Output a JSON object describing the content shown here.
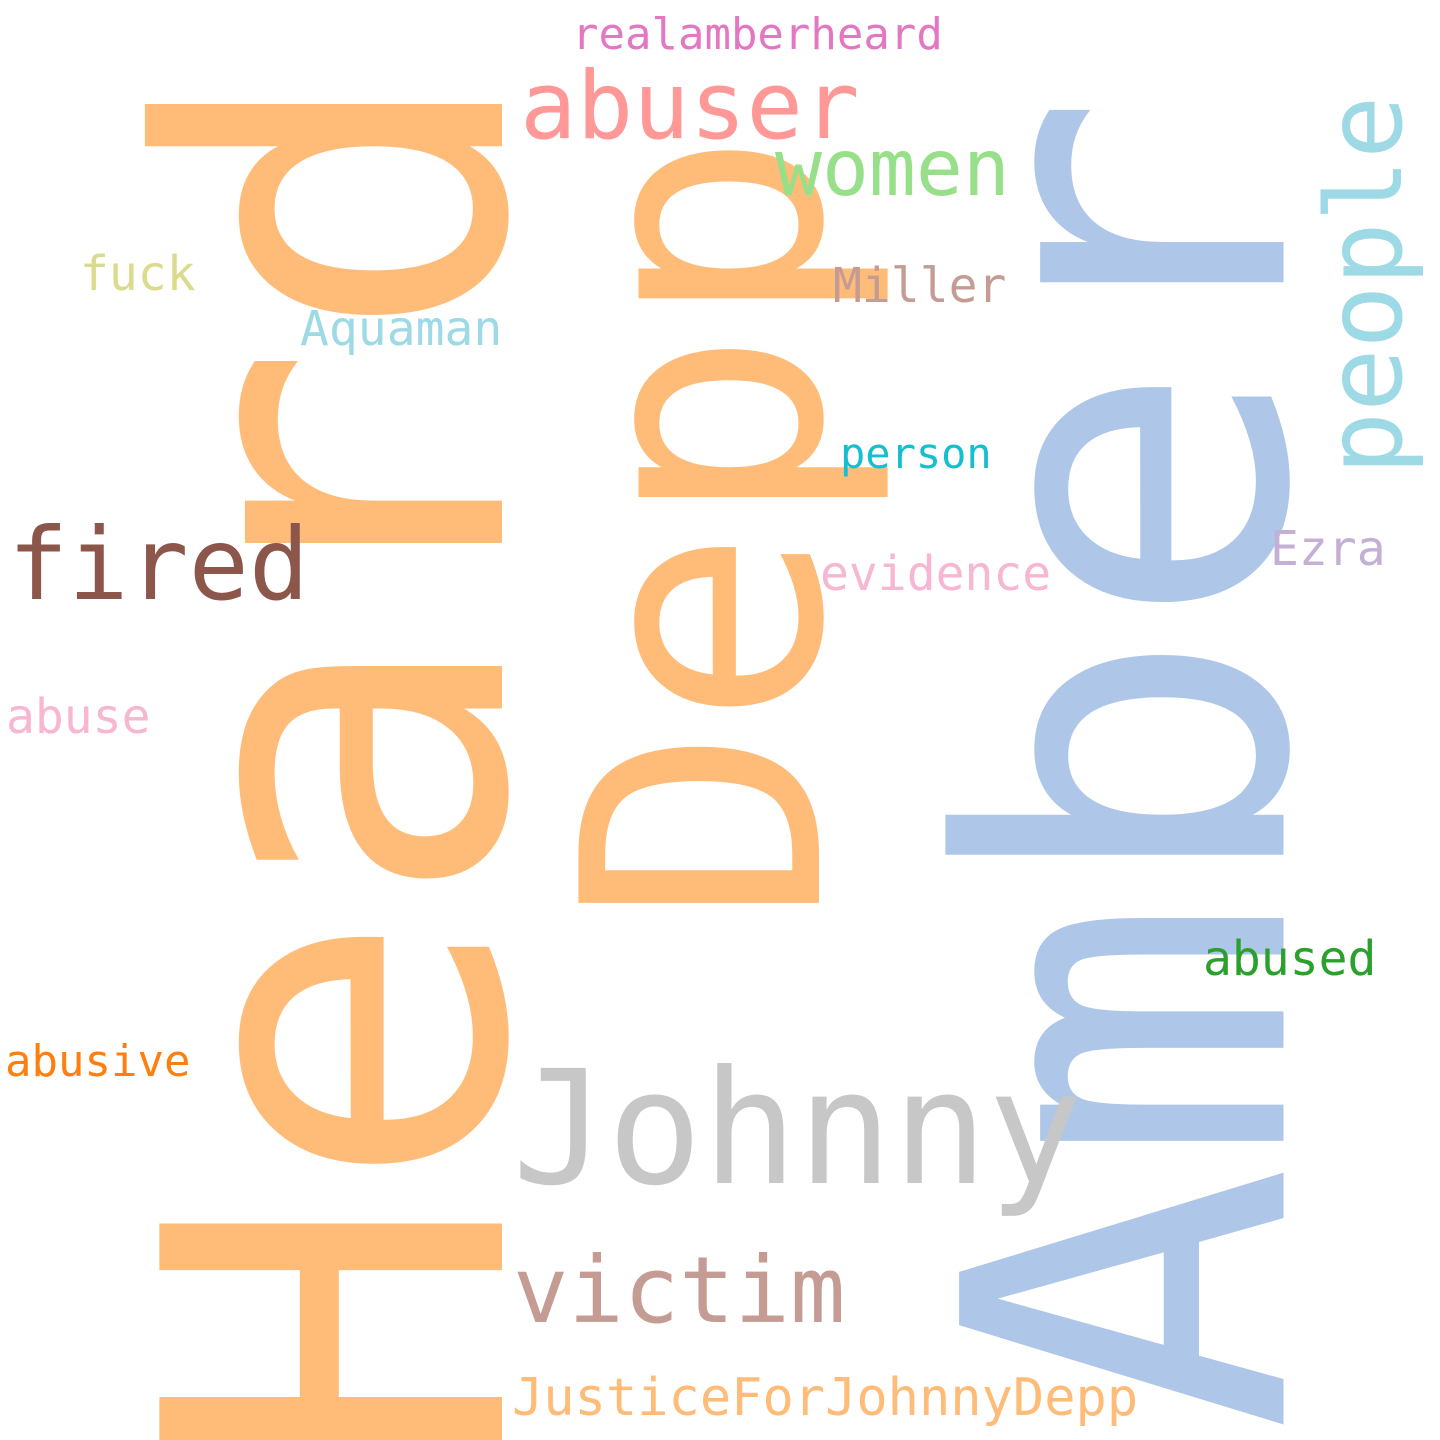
{
  "words": {
    "heard": {
      "text": "Heard",
      "color": "#ffbb78"
    },
    "amber": {
      "text": "Amber",
      "color": "#aec7e8"
    },
    "depp": {
      "text": "Depp",
      "color": "#ffbb78"
    },
    "johnny": {
      "text": "Johnny",
      "color": "#c7c7c7"
    },
    "abuser": {
      "text": "abuser",
      "color": "#ff9896"
    },
    "women": {
      "text": "women",
      "color": "#98df8a"
    },
    "people": {
      "text": "people",
      "color": "#9edae5"
    },
    "fired": {
      "text": "fired",
      "color": "#8c564b"
    },
    "victim": {
      "text": "victim",
      "color": "#c49c94"
    },
    "realamberheard": {
      "text": "realamberheard",
      "color": "#e377c2"
    },
    "fuck": {
      "text": "fuck",
      "color": "#dbdb8d"
    },
    "miller": {
      "text": "Miller",
      "color": "#c49c94"
    },
    "aquaman": {
      "text": "Aquaman",
      "color": "#9edae5"
    },
    "person": {
      "text": "person",
      "color": "#17becf"
    },
    "ezra": {
      "text": "Ezra",
      "color": "#c5b0d5"
    },
    "evidence": {
      "text": "evidence",
      "color": "#f7b6d2"
    },
    "abuse": {
      "text": "abuse",
      "color": "#f7b6d2"
    },
    "abused": {
      "text": "abused",
      "color": "#2ca02c"
    },
    "abusive": {
      "text": "abusive",
      "color": "#ff7f0e"
    },
    "justice": {
      "text": "JusticeForJohnnyDepp",
      "color": "#ffbb78"
    }
  }
}
